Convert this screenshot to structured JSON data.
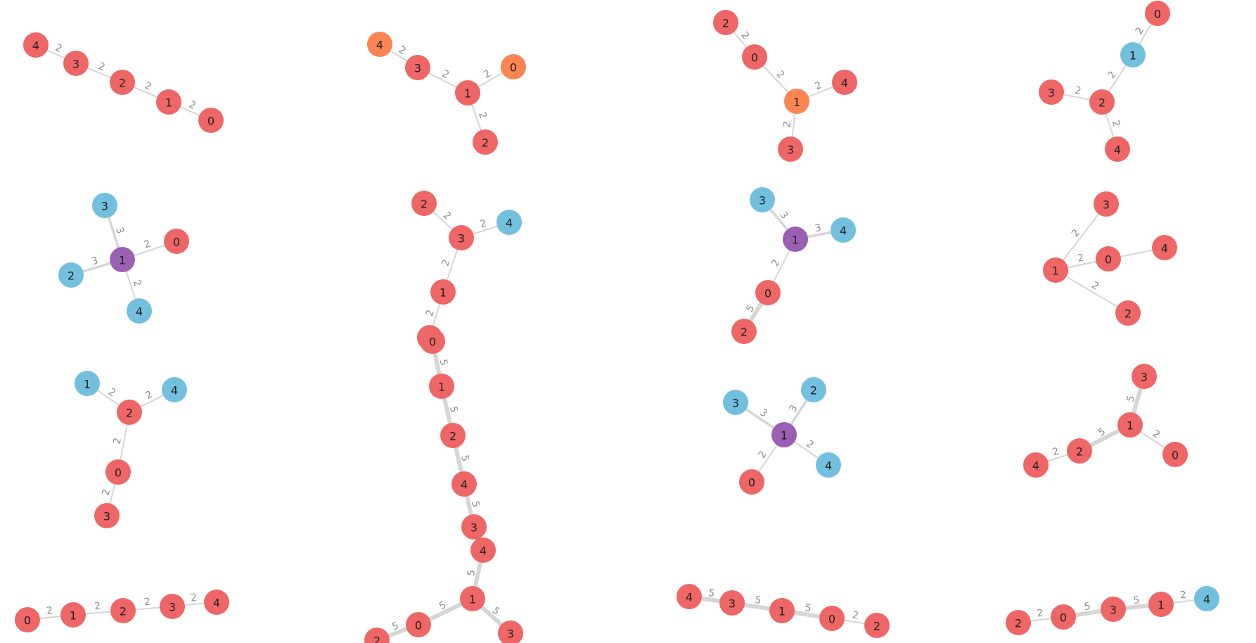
{
  "colors": {
    "red": "#ee6666",
    "orange": "#fc8452",
    "blue": "#73c0de",
    "purple": "#9a60b4",
    "edge": "#d6d6d6",
    "edge_label": "#8e8e8e"
  },
  "graphs": [
    {
      "nodes": [
        {
          "label": "4",
          "color": "red"
        },
        {
          "label": "3",
          "color": "red"
        },
        {
          "label": "2",
          "color": "red"
        },
        {
          "label": "1",
          "color": "red"
        },
        {
          "label": "0",
          "color": "red"
        }
      ],
      "edges": [
        {
          "from": 0,
          "to": 1,
          "weight": "2"
        },
        {
          "from": 1,
          "to": 2,
          "weight": "2"
        },
        {
          "from": 2,
          "to": 3,
          "weight": "2"
        },
        {
          "from": 3,
          "to": 4,
          "weight": "2"
        }
      ]
    },
    {
      "nodes": [
        {
          "label": "4",
          "color": "orange"
        },
        {
          "label": "3",
          "color": "red"
        },
        {
          "label": "1",
          "color": "red"
        },
        {
          "label": "0",
          "color": "orange"
        },
        {
          "label": "2",
          "color": "red"
        }
      ],
      "edges": [
        {
          "from": 0,
          "to": 1,
          "weight": "2"
        },
        {
          "from": 1,
          "to": 2,
          "weight": "2"
        },
        {
          "from": 2,
          "to": 3,
          "weight": "2"
        },
        {
          "from": 2,
          "to": 4,
          "weight": "2"
        }
      ]
    },
    {
      "nodes": [
        {
          "label": "2",
          "color": "red"
        },
        {
          "label": "0",
          "color": "red"
        },
        {
          "label": "1",
          "color": "orange"
        },
        {
          "label": "4",
          "color": "red"
        },
        {
          "label": "3",
          "color": "red"
        }
      ],
      "edges": [
        {
          "from": 0,
          "to": 1,
          "weight": "2"
        },
        {
          "from": 1,
          "to": 2,
          "weight": "2"
        },
        {
          "from": 2,
          "to": 3,
          "weight": "2"
        },
        {
          "from": 2,
          "to": 4,
          "weight": "2"
        }
      ]
    },
    {
      "nodes": [
        {
          "label": "0",
          "color": "red"
        },
        {
          "label": "1",
          "color": "blue"
        },
        {
          "label": "3",
          "color": "red"
        },
        {
          "label": "2",
          "color": "red"
        },
        {
          "label": "4",
          "color": "red"
        }
      ],
      "edges": [
        {
          "from": 0,
          "to": 1,
          "weight": "2"
        },
        {
          "from": 1,
          "to": 3,
          "weight": "2"
        },
        {
          "from": 2,
          "to": 3,
          "weight": "2"
        },
        {
          "from": 3,
          "to": 4,
          "weight": "2"
        }
      ]
    },
    {
      "nodes": [
        {
          "label": "3",
          "color": "blue"
        },
        {
          "label": "1",
          "color": "purple"
        },
        {
          "label": "0",
          "color": "red"
        },
        {
          "label": "2",
          "color": "blue"
        },
        {
          "label": "4",
          "color": "blue"
        }
      ],
      "edges": [
        {
          "from": 0,
          "to": 1,
          "weight": "3"
        },
        {
          "from": 1,
          "to": 2,
          "weight": "2"
        },
        {
          "from": 3,
          "to": 1,
          "weight": "3"
        },
        {
          "from": 1,
          "to": 4,
          "weight": "2"
        }
      ]
    },
    {
      "nodes": [
        {
          "label": "2",
          "color": "red"
        },
        {
          "label": "3",
          "color": "red"
        },
        {
          "label": "4",
          "color": "blue"
        },
        {
          "label": "1",
          "color": "red"
        },
        {
          "label": "0",
          "color": "red"
        }
      ],
      "edges": [
        {
          "from": 0,
          "to": 1,
          "weight": "2"
        },
        {
          "from": 1,
          "to": 2,
          "weight": "2"
        },
        {
          "from": 1,
          "to": 3,
          "weight": "2"
        },
        {
          "from": 3,
          "to": 4,
          "weight": "2"
        }
      ]
    },
    {
      "nodes": [
        {
          "label": "3",
          "color": "blue"
        },
        {
          "label": "1",
          "color": "purple"
        },
        {
          "label": "4",
          "color": "blue"
        },
        {
          "label": "0",
          "color": "red"
        },
        {
          "label": "2",
          "color": "red"
        }
      ],
      "edges": [
        {
          "from": 0,
          "to": 1,
          "weight": "3"
        },
        {
          "from": 1,
          "to": 2,
          "weight": "3"
        },
        {
          "from": 1,
          "to": 3,
          "weight": "2"
        },
        {
          "from": 3,
          "to": 4,
          "weight": "5"
        }
      ]
    },
    {
      "nodes": [
        {
          "label": "3",
          "color": "red"
        },
        {
          "label": "0",
          "color": "red"
        },
        {
          "label": "4",
          "color": "red"
        },
        {
          "label": "1",
          "color": "red"
        },
        {
          "label": "2",
          "color": "red"
        }
      ],
      "edges": [
        {
          "from": 0,
          "to": 3,
          "weight": "2"
        },
        {
          "from": 3,
          "to": 1,
          "weight": "2"
        },
        {
          "from": 2,
          "to": 3,
          "weight": "2"
        },
        {
          "from": 3,
          "to": 4,
          "weight": "2"
        }
      ]
    },
    {
      "nodes": [
        {
          "label": "1",
          "color": "blue"
        },
        {
          "label": "4",
          "color": "blue"
        },
        {
          "label": "2",
          "color": "red"
        },
        {
          "label": "0",
          "color": "red"
        },
        {
          "label": "3",
          "color": "red"
        }
      ],
      "edges": [
        {
          "from": 0,
          "to": 2,
          "weight": "2"
        },
        {
          "from": 2,
          "to": 1,
          "weight": "2"
        },
        {
          "from": 2,
          "to": 3,
          "weight": "2"
        },
        {
          "from": 3,
          "to": 4,
          "weight": "2"
        }
      ]
    },
    {
      "nodes": [
        {
          "label": "0",
          "color": "red"
        },
        {
          "label": "1",
          "color": "red"
        },
        {
          "label": "2",
          "color": "red"
        },
        {
          "label": "4",
          "color": "red"
        },
        {
          "label": "3",
          "color": "red"
        }
      ],
      "edges": [
        {
          "from": 0,
          "to": 1,
          "weight": "5"
        },
        {
          "from": 1,
          "to": 2,
          "weight": "5"
        },
        {
          "from": 2,
          "to": 3,
          "weight": "5"
        },
        {
          "from": 3,
          "to": 4,
          "weight": "5"
        }
      ]
    },
    {
      "nodes": [
        {
          "label": "2",
          "color": "blue"
        },
        {
          "label": "3",
          "color": "blue"
        },
        {
          "label": "1",
          "color": "purple"
        },
        {
          "label": "4",
          "color": "blue"
        },
        {
          "label": "0",
          "color": "red"
        }
      ],
      "edges": [
        {
          "from": 1,
          "to": 2,
          "weight": "3"
        },
        {
          "from": 0,
          "to": 2,
          "weight": "3"
        },
        {
          "from": 2,
          "to": 3,
          "weight": "2"
        },
        {
          "from": 2,
          "to": 4,
          "weight": "2"
        }
      ]
    },
    {
      "nodes": [
        {
          "label": "3",
          "color": "red"
        },
        {
          "label": "1",
          "color": "red"
        },
        {
          "label": "0",
          "color": "red"
        },
        {
          "label": "2",
          "color": "red"
        },
        {
          "label": "4",
          "color": "red"
        }
      ],
      "edges": [
        {
          "from": 0,
          "to": 1,
          "weight": "5"
        },
        {
          "from": 1,
          "to": 2,
          "weight": "2"
        },
        {
          "from": 1,
          "to": 3,
          "weight": "5"
        },
        {
          "from": 3,
          "to": 4,
          "weight": "2"
        }
      ]
    },
    {
      "nodes": [
        {
          "label": "0",
          "color": "red"
        },
        {
          "label": "1",
          "color": "red"
        },
        {
          "label": "2",
          "color": "red"
        },
        {
          "label": "3",
          "color": "red"
        },
        {
          "label": "4",
          "color": "red"
        }
      ],
      "edges": [
        {
          "from": 0,
          "to": 1,
          "weight": "2"
        },
        {
          "from": 1,
          "to": 2,
          "weight": "2"
        },
        {
          "from": 2,
          "to": 3,
          "weight": "2"
        },
        {
          "from": 3,
          "to": 4,
          "weight": "2"
        }
      ]
    },
    {
      "nodes": [
        {
          "label": "4",
          "color": "red"
        },
        {
          "label": "1",
          "color": "red"
        },
        {
          "label": "0",
          "color": "red"
        },
        {
          "label": "3",
          "color": "red"
        },
        {
          "label": "2",
          "color": "red"
        }
      ],
      "edges": [
        {
          "from": 0,
          "to": 1,
          "weight": "5"
        },
        {
          "from": 1,
          "to": 2,
          "weight": "5"
        },
        {
          "from": 1,
          "to": 3,
          "weight": "5"
        },
        {
          "from": 2,
          "to": 4,
          "weight": "5"
        }
      ]
    },
    {
      "nodes": [
        {
          "label": "4",
          "color": "red"
        },
        {
          "label": "3",
          "color": "red"
        },
        {
          "label": "1",
          "color": "red"
        },
        {
          "label": "0",
          "color": "red"
        },
        {
          "label": "2",
          "color": "red"
        }
      ],
      "edges": [
        {
          "from": 0,
          "to": 1,
          "weight": "5"
        },
        {
          "from": 1,
          "to": 2,
          "weight": "5"
        },
        {
          "from": 2,
          "to": 3,
          "weight": "5"
        },
        {
          "from": 3,
          "to": 4,
          "weight": "2"
        }
      ]
    },
    {
      "nodes": [
        {
          "label": "2",
          "color": "red"
        },
        {
          "label": "0",
          "color": "red"
        },
        {
          "label": "3",
          "color": "red"
        },
        {
          "label": "1",
          "color": "red"
        },
        {
          "label": "4",
          "color": "blue"
        }
      ],
      "edges": [
        {
          "from": 0,
          "to": 1,
          "weight": "2"
        },
        {
          "from": 1,
          "to": 2,
          "weight": "5"
        },
        {
          "from": 2,
          "to": 3,
          "weight": "5"
        },
        {
          "from": 3,
          "to": 4,
          "weight": "2"
        }
      ]
    }
  ]
}
